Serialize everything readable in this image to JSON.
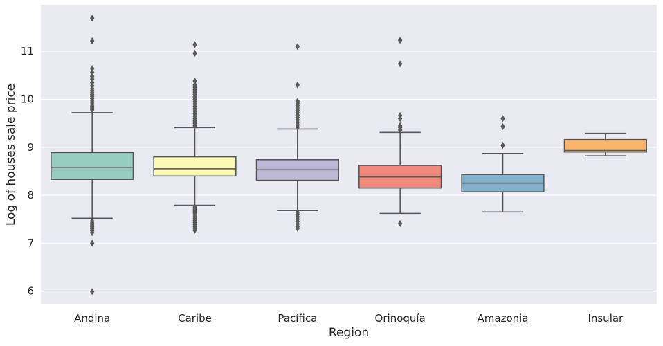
{
  "chart_data": {
    "type": "box",
    "xlabel": "Region",
    "ylabel": "Log of houses sale price",
    "categories": [
      "Andina",
      "Caribe",
      "Pacífica",
      "Orinoquía",
      "Amazonia",
      "Insular"
    ],
    "ylim": [
      5.72,
      11.97
    ],
    "yticks": [
      6,
      7,
      8,
      9,
      10,
      11
    ],
    "grid": true,
    "colors": {
      "background": "#eaeaf2",
      "grid": "#ffffff",
      "box_edge": "#595959",
      "boxes": [
        "#96cdc0",
        "#fafab4",
        "#bbb7d5",
        "#ef8a7d",
        "#82b1cc",
        "#f8b36c"
      ]
    },
    "boxes": [
      {
        "category": "Andina",
        "whisker_low": 7.52,
        "q1": 8.33,
        "median": 8.58,
        "q3": 8.89,
        "whisker_high": 9.72,
        "outliers": [
          5.99,
          7.0,
          7.22,
          7.26,
          7.3,
          7.34,
          7.38,
          7.42,
          7.46,
          9.78,
          9.82,
          9.86,
          9.9,
          9.94,
          9.98,
          10.02,
          10.06,
          10.1,
          10.14,
          10.18,
          10.22,
          10.28,
          10.35,
          10.42,
          10.48,
          10.56,
          10.64,
          11.22,
          11.69
        ]
      },
      {
        "category": "Caribe",
        "whisker_low": 7.79,
        "q1": 8.4,
        "median": 8.55,
        "q3": 8.8,
        "whisker_high": 9.41,
        "outliers": [
          7.27,
          7.31,
          7.35,
          7.39,
          7.43,
          7.47,
          7.51,
          7.55,
          7.59,
          7.63,
          7.67,
          7.71,
          7.75,
          9.45,
          9.5,
          9.55,
          9.6,
          9.65,
          9.7,
          9.75,
          9.8,
          9.85,
          9.9,
          9.95,
          10.0,
          10.05,
          10.1,
          10.15,
          10.2,
          10.25,
          10.3,
          10.38,
          10.96,
          11.14
        ]
      },
      {
        "category": "Pacífica",
        "whisker_low": 7.68,
        "q1": 8.31,
        "median": 8.53,
        "q3": 8.74,
        "whisker_high": 9.38,
        "outliers": [
          7.31,
          7.35,
          7.4,
          7.45,
          7.5,
          7.55,
          7.6,
          7.64,
          9.42,
          9.47,
          9.52,
          9.57,
          9.62,
          9.67,
          9.72,
          9.77,
          9.82,
          9.87,
          9.92,
          9.96,
          10.3,
          11.1
        ]
      },
      {
        "category": "Orinoquía",
        "whisker_low": 7.62,
        "q1": 8.15,
        "median": 8.38,
        "q3": 8.62,
        "whisker_high": 9.31,
        "outliers": [
          7.41,
          9.36,
          9.41,
          9.45,
          9.6,
          9.66,
          10.74,
          11.23
        ]
      },
      {
        "category": "Amazonia",
        "whisker_low": 7.65,
        "q1": 8.07,
        "median": 8.25,
        "q3": 8.43,
        "whisker_high": 8.87,
        "outliers": [
          9.04,
          9.43,
          9.6
        ]
      },
      {
        "category": "Insular",
        "whisker_low": 8.82,
        "q1": 8.9,
        "median": 8.93,
        "q3": 9.16,
        "whisker_high": 9.29,
        "outliers": []
      }
    ]
  }
}
